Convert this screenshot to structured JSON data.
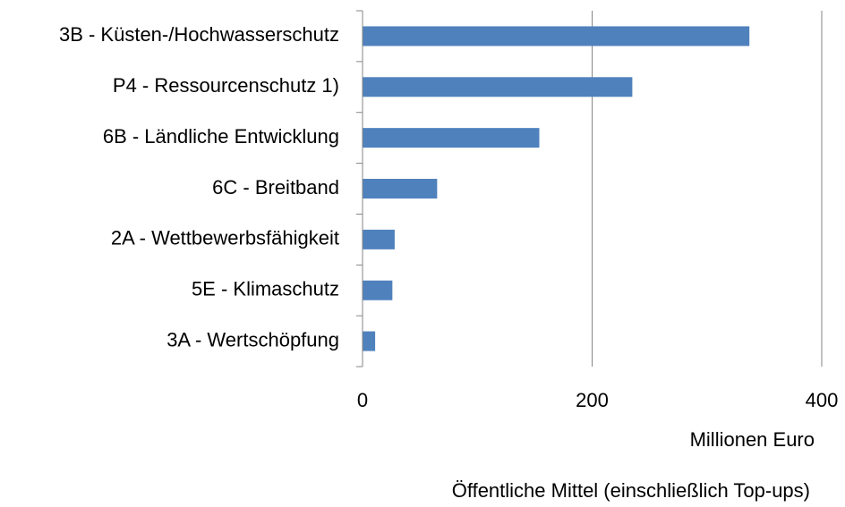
{
  "chart_data": {
    "type": "bar",
    "orientation": "horizontal",
    "categories": [
      "3B - Küsten-/Hochwasserschutz",
      "P4 - Ressourcenschutz 1)",
      "6B - Ländliche Entwicklung",
      "6C - Breitband",
      "2A - Wettbewerbsfähigkeit",
      "5E - Klimaschutz",
      "3A - Wertschöpfung"
    ],
    "values": [
      337,
      235,
      154,
      65,
      28,
      26,
      11
    ],
    "color": "#4f81bd",
    "xlim": [
      0,
      400
    ],
    "xticks": [
      0,
      200,
      400
    ],
    "grid": true,
    "xlabel": "Millionen Euro",
    "annotation": "Öffentliche Mittel (einschließlich Top-ups)"
  }
}
